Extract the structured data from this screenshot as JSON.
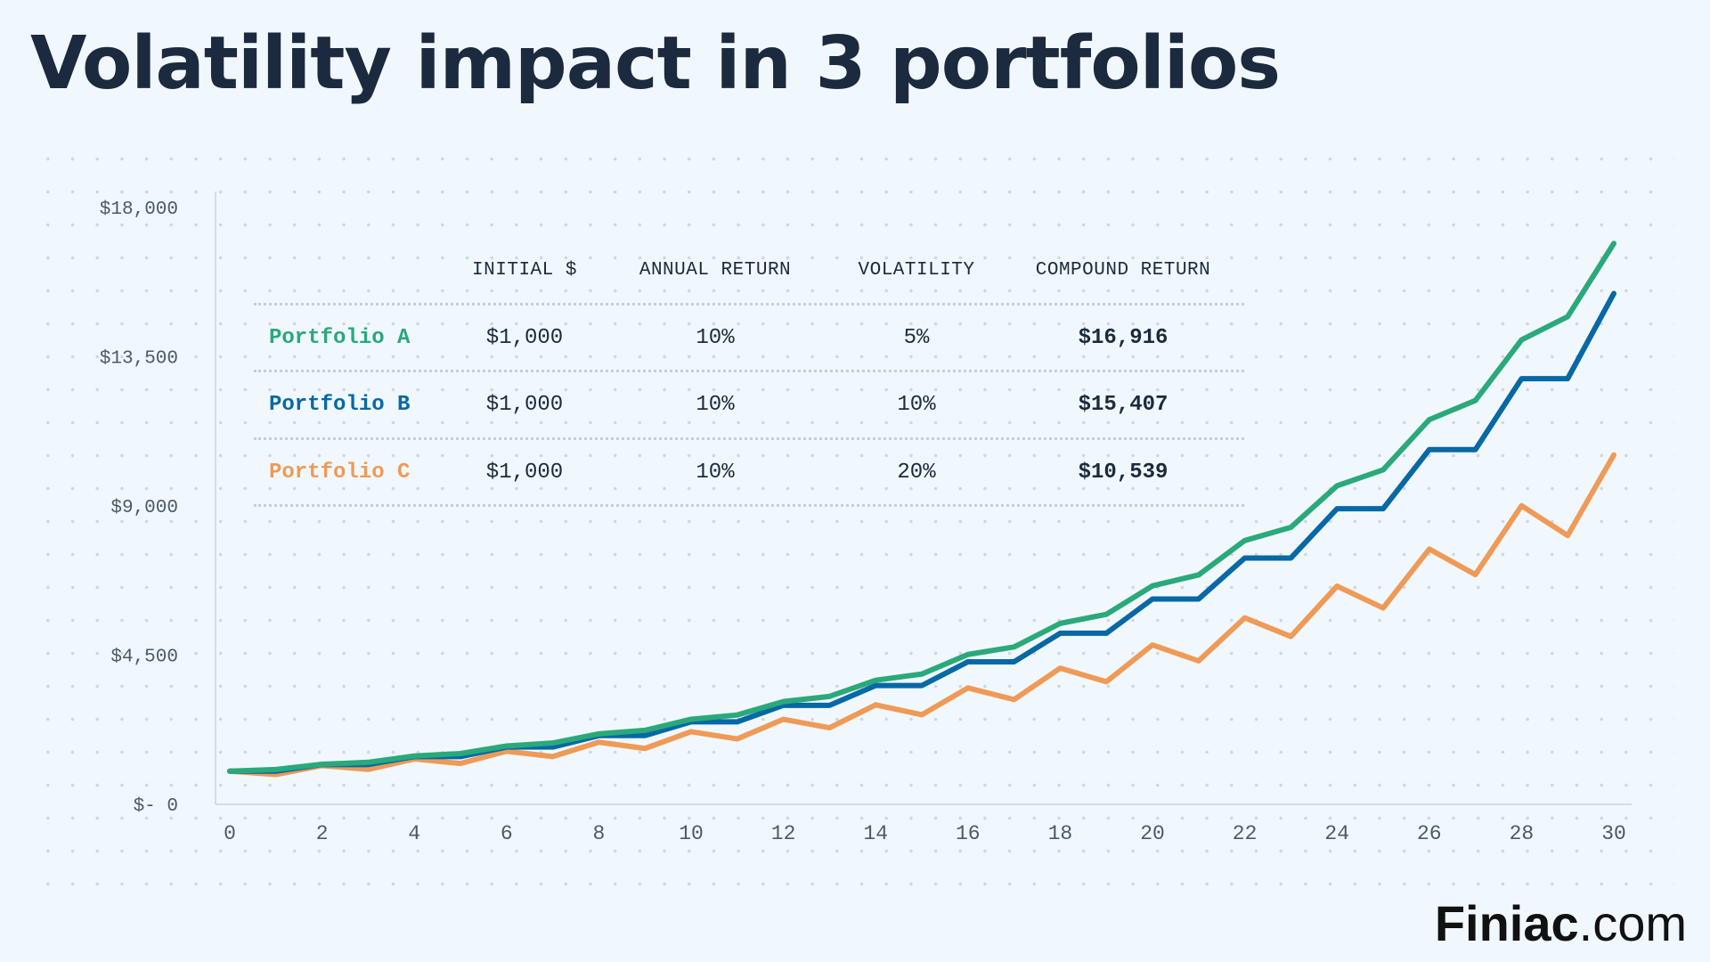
{
  "title": "Volatility impact in 3 portfolios",
  "table": {
    "headers": [
      "INITIAL $",
      "ANNUAL RETURN",
      "VOLATILITY",
      "COMPOUND RETURN"
    ],
    "rows": [
      {
        "name": "Portfolio A",
        "initial": "$1,000",
        "annual_return": "10%",
        "volatility": "5%",
        "compound_return": "$16,916",
        "color": "#2aa97a"
      },
      {
        "name": "Portfolio B",
        "initial": "$1,000",
        "annual_return": "10%",
        "volatility": "10%",
        "compound_return": "$15,407",
        "color": "#0768a6"
      },
      {
        "name": "Portfolio C",
        "initial": "$1,000",
        "annual_return": "10%",
        "volatility": "20%",
        "compound_return": "$10,539",
        "color": "#ef9a57"
      }
    ]
  },
  "chart_data": {
    "type": "line",
    "title": "Volatility impact in 3 portfolios",
    "xlabel": "",
    "ylabel": "",
    "x": [
      0,
      1,
      2,
      3,
      4,
      5,
      6,
      7,
      8,
      9,
      10,
      11,
      12,
      13,
      14,
      15,
      16,
      17,
      18,
      19,
      20,
      21,
      22,
      23,
      24,
      25,
      26,
      27,
      28,
      29,
      30
    ],
    "xlim": [
      0,
      30
    ],
    "ylim": [
      0,
      18000
    ],
    "x_ticks": [
      "0",
      "2",
      "4",
      "6",
      "8",
      "10",
      "12",
      "14",
      "16",
      "18",
      "20",
      "22",
      "24",
      "26",
      "28",
      "30"
    ],
    "y_ticks": [
      {
        "value": 0,
        "label": "$- 0"
      },
      {
        "value": 4500,
        "label": "$4,500"
      },
      {
        "value": 9000,
        "label": "$9,000"
      },
      {
        "value": 13500,
        "label": "$13,500"
      },
      {
        "value": 18000,
        "label": "$18,000"
      }
    ],
    "series": [
      {
        "name": "Portfolio A",
        "color": "#2aa97a",
        "values": [
          1000,
          1050,
          1208,
          1268,
          1458,
          1531,
          1761,
          1849,
          2126,
          2232,
          2567,
          2695,
          3100,
          3255,
          3743,
          3930,
          4520,
          4746,
          5457,
          5730,
          6590,
          6919,
          7957,
          8355,
          9608,
          10089,
          11602,
          12182,
          14009,
          14710,
          16916
        ]
      },
      {
        "name": "Portfolio B",
        "color": "#0768a6",
        "values": [
          1000,
          1000,
          1200,
          1200,
          1440,
          1440,
          1728,
          1728,
          2074,
          2074,
          2488,
          2488,
          2986,
          2986,
          3583,
          3583,
          4300,
          4300,
          5160,
          5160,
          6192,
          6192,
          7430,
          7430,
          8916,
          8916,
          10699,
          10699,
          12839,
          12839,
          15407
        ]
      },
      {
        "name": "Portfolio C",
        "color": "#ef9a57",
        "values": [
          1000,
          900,
          1170,
          1053,
          1369,
          1232,
          1602,
          1441,
          1874,
          1686,
          2192,
          1973,
          2565,
          2309,
          3001,
          2701,
          3511,
          3160,
          4108,
          3697,
          4807,
          4326,
          5624,
          5062,
          6580,
          5922,
          7699,
          6929,
          9007,
          8107,
          10539
        ]
      }
    ],
    "grid": false,
    "legend": "table-top-left"
  },
  "logo": {
    "bold": "Finiac",
    "suffix": ".com"
  }
}
